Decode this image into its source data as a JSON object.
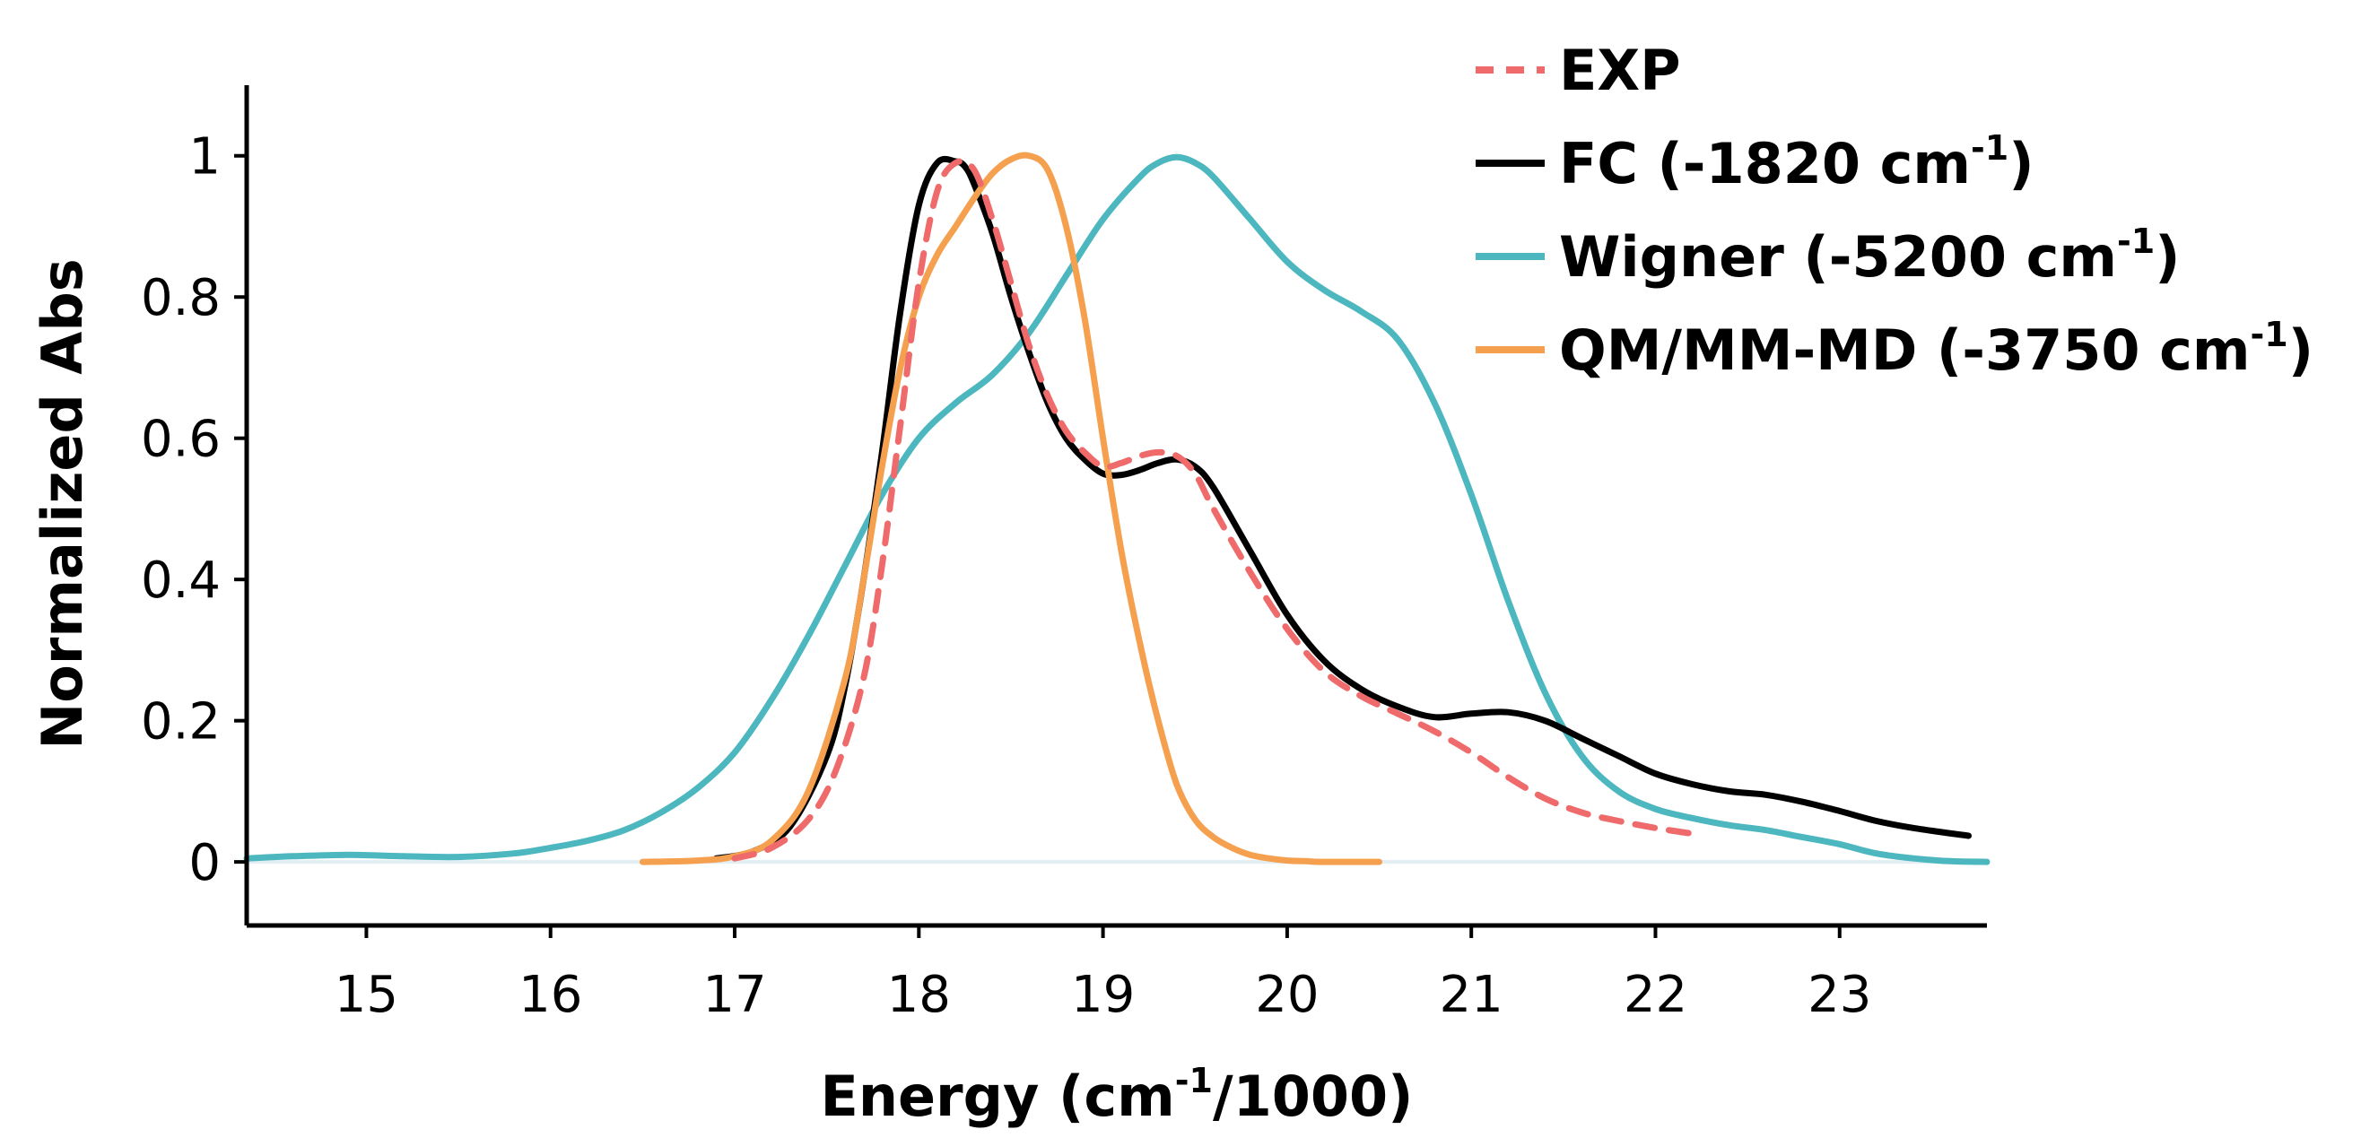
{
  "chart_data": {
    "type": "line",
    "title": "",
    "xlabel": "Energy (cm",
    "xlabel_sup": "-1",
    "xlabel_suffix": "/1000)",
    "ylabel": "Normalized Abs",
    "xlim": [
      14.35,
      23.8
    ],
    "ylim": [
      -0.09,
      1.1
    ],
    "xticks": [
      15,
      16,
      17,
      18,
      19,
      20,
      21,
      22,
      23
    ],
    "xtick_labels": [
      "15",
      "16",
      "17",
      "18",
      "19",
      "20",
      "21",
      "22",
      "23"
    ],
    "yticks": [
      0,
      0.2,
      0.4,
      0.6,
      0.8,
      1
    ],
    "ytick_labels": [
      "0",
      "0.2",
      "0.4",
      "0.6",
      "0.8",
      "1"
    ],
    "legend_position": "top-right",
    "series": [
      {
        "name": "EXP",
        "label": "EXP",
        "label_sup": "",
        "label_suffix": "",
        "color": "#ef6b6b",
        "dashed": true,
        "x": [
          17.0,
          17.2,
          17.4,
          17.55,
          17.7,
          17.8,
          17.9,
          18.0,
          18.1,
          18.2,
          18.3,
          18.4,
          18.5,
          18.6,
          18.7,
          18.8,
          18.9,
          19.0,
          19.1,
          19.2,
          19.3,
          19.4,
          19.5,
          19.6,
          19.8,
          20.0,
          20.2,
          20.4,
          20.6,
          20.8,
          21.0,
          21.2,
          21.4,
          21.6,
          21.8,
          22.0,
          22.2
        ],
        "y": [
          0.005,
          0.02,
          0.06,
          0.13,
          0.26,
          0.42,
          0.62,
          0.82,
          0.95,
          0.99,
          0.98,
          0.91,
          0.82,
          0.73,
          0.66,
          0.61,
          0.58,
          0.56,
          0.565,
          0.575,
          0.58,
          0.575,
          0.55,
          0.5,
          0.41,
          0.33,
          0.27,
          0.235,
          0.21,
          0.185,
          0.155,
          0.12,
          0.09,
          0.07,
          0.058,
          0.048,
          0.04
        ]
      },
      {
        "name": "FC",
        "label": "FC (-1820 cm",
        "label_sup": "-1",
        "label_suffix": ")",
        "color": "#000000",
        "dashed": false,
        "x": [
          16.9,
          17.1,
          17.3,
          17.5,
          17.6,
          17.7,
          17.8,
          17.9,
          18.0,
          18.1,
          18.2,
          18.25,
          18.3,
          18.4,
          18.5,
          18.6,
          18.7,
          18.8,
          18.9,
          19.0,
          19.1,
          19.2,
          19.3,
          19.4,
          19.5,
          19.6,
          19.8,
          20.0,
          20.2,
          20.4,
          20.6,
          20.8,
          21.0,
          21.2,
          21.4,
          21.6,
          21.8,
          22.0,
          22.2,
          22.4,
          22.6,
          22.8,
          23.0,
          23.2,
          23.4,
          23.7
        ],
        "y": [
          0.005,
          0.015,
          0.05,
          0.15,
          0.25,
          0.4,
          0.58,
          0.78,
          0.93,
          0.99,
          0.992,
          0.985,
          0.96,
          0.89,
          0.8,
          0.72,
          0.65,
          0.6,
          0.57,
          0.55,
          0.548,
          0.555,
          0.565,
          0.57,
          0.56,
          0.53,
          0.44,
          0.35,
          0.285,
          0.245,
          0.22,
          0.205,
          0.21,
          0.212,
          0.2,
          0.175,
          0.15,
          0.125,
          0.11,
          0.1,
          0.095,
          0.085,
          0.072,
          0.058,
          0.048,
          0.037
        ]
      },
      {
        "name": "Wigner",
        "label": "Wigner (-5200 cm",
        "label_sup": "-1",
        "label_suffix": ")",
        "color": "#4cb7bf",
        "dashed": false,
        "x": [
          14.35,
          14.6,
          14.9,
          15.2,
          15.5,
          15.8,
          16.0,
          16.2,
          16.4,
          16.6,
          16.8,
          17.0,
          17.2,
          17.4,
          17.6,
          17.8,
          18.0,
          18.2,
          18.4,
          18.6,
          18.8,
          19.0,
          19.2,
          19.3,
          19.4,
          19.5,
          19.6,
          19.8,
          20.0,
          20.2,
          20.4,
          20.6,
          20.8,
          21.0,
          21.2,
          21.4,
          21.6,
          21.8,
          22.0,
          22.2,
          22.4,
          22.6,
          22.8,
          23.0,
          23.2,
          23.4,
          23.6,
          23.8
        ],
        "y": [
          0.005,
          0.008,
          0.01,
          0.008,
          0.007,
          0.012,
          0.02,
          0.03,
          0.045,
          0.07,
          0.105,
          0.155,
          0.23,
          0.32,
          0.42,
          0.52,
          0.6,
          0.65,
          0.69,
          0.75,
          0.83,
          0.91,
          0.97,
          0.99,
          0.998,
          0.99,
          0.97,
          0.91,
          0.85,
          0.81,
          0.78,
          0.74,
          0.65,
          0.52,
          0.37,
          0.24,
          0.15,
          0.1,
          0.075,
          0.062,
          0.052,
          0.045,
          0.035,
          0.025,
          0.012,
          0.005,
          0.001,
          0.0
        ]
      },
      {
        "name": "QM/MM-MD",
        "label": "QM/MM-MD (-3750 cm",
        "label_sup": "-1",
        "label_suffix": ")",
        "color": "#f5a04f",
        "dashed": false,
        "x": [
          16.5,
          16.8,
          17.0,
          17.2,
          17.4,
          17.6,
          17.7,
          17.8,
          17.9,
          18.0,
          18.1,
          18.2,
          18.3,
          18.4,
          18.5,
          18.6,
          18.7,
          18.8,
          18.9,
          19.0,
          19.1,
          19.2,
          19.3,
          19.4,
          19.5,
          19.6,
          19.7,
          19.8,
          19.9,
          20.0,
          20.1,
          20.2,
          20.5
        ],
        "y": [
          0.0,
          0.002,
          0.008,
          0.03,
          0.1,
          0.26,
          0.4,
          0.56,
          0.7,
          0.8,
          0.86,
          0.9,
          0.94,
          0.975,
          0.995,
          1.0,
          0.98,
          0.9,
          0.77,
          0.6,
          0.44,
          0.31,
          0.2,
          0.11,
          0.06,
          0.035,
          0.02,
          0.01,
          0.005,
          0.002,
          0.001,
          0.0,
          0.0
        ]
      }
    ]
  }
}
